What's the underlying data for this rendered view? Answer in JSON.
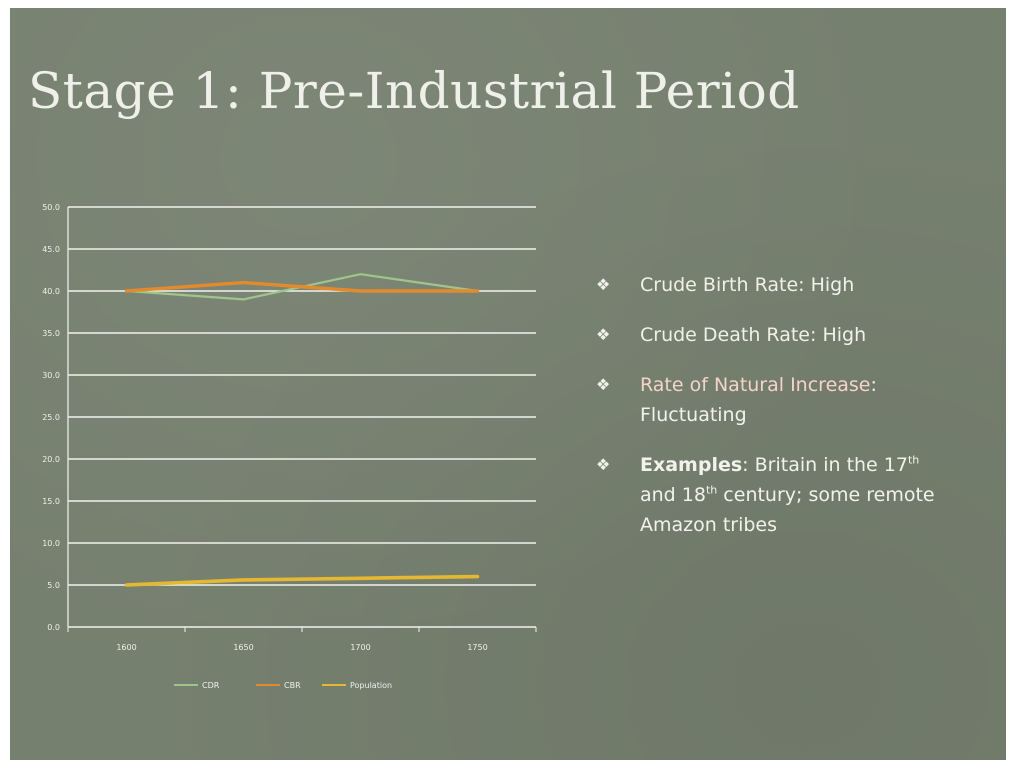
{
  "slide": {
    "title": "Stage 1: Pre-Industrial Period",
    "bullets": [
      {
        "label": "Crude Birth Rate",
        "value": "High"
      },
      {
        "label": "Crude Death Rate",
        "value": "High"
      },
      {
        "label": "Rate of Natural Increase",
        "value": "Fluctuating"
      },
      {
        "label": "Examples",
        "value_part1": "Britain in the 17",
        "sup1": "th",
        "value_part2": "and 18",
        "sup2": "th",
        "value_part3": " century; some remote Amazon tribes"
      }
    ],
    "bullet_icon": "diamond-cluster-icon",
    "colors": {
      "background": "#76806f",
      "cdr": "#9fc58b",
      "cbr": "#e38b2c",
      "population": "#e4b830"
    }
  },
  "chart_data": {
    "type": "line",
    "x": [
      "1600",
      "1650",
      "1700",
      "1750"
    ],
    "yticks": [
      "0.0",
      "5.0",
      "10.0",
      "15.0",
      "20.0",
      "25.0",
      "30.0",
      "35.0",
      "40.0",
      "45.0",
      "50.0"
    ],
    "ylim": [
      0,
      50
    ],
    "grid": true,
    "legend_position": "bottom",
    "series": [
      {
        "name": "CDR",
        "values": [
          40,
          39,
          42,
          40
        ]
      },
      {
        "name": "CBR",
        "values": [
          40,
          41,
          40,
          40
        ]
      },
      {
        "name": "Population",
        "values": [
          5,
          5.6,
          5.8,
          6
        ]
      }
    ]
  }
}
